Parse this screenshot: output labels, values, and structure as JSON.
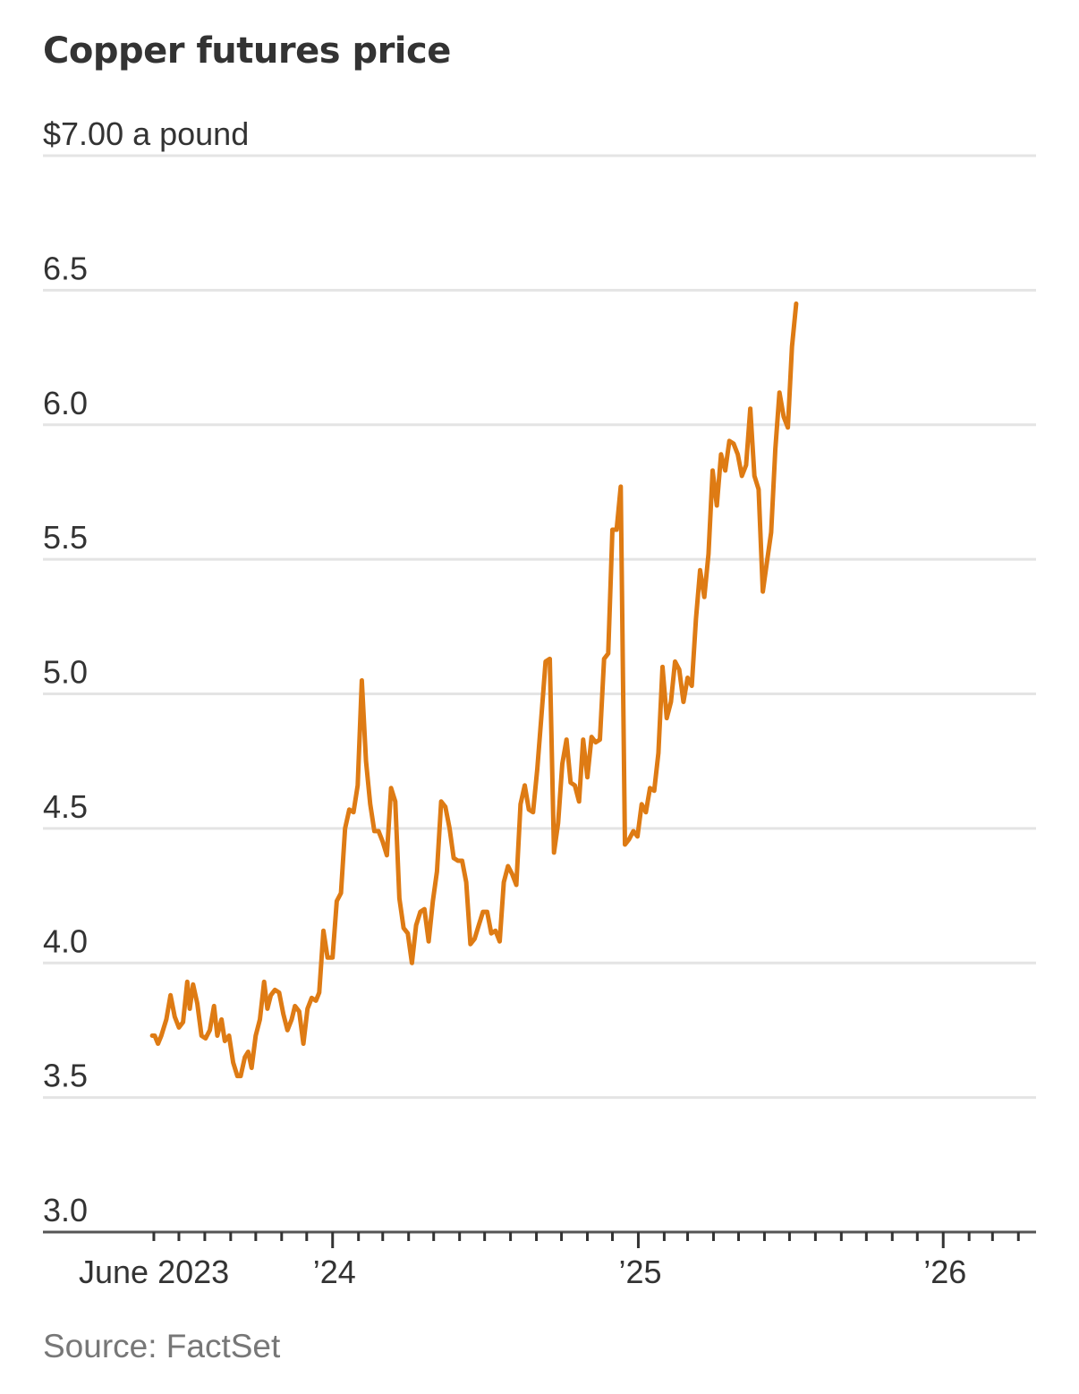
{
  "chart_data": {
    "type": "line",
    "title": "Copper futures price",
    "ylabel": "",
    "xlabel": "",
    "ylim": [
      3.0,
      7.0
    ],
    "yticks": [
      3.0,
      3.5,
      4.0,
      4.5,
      5.0,
      5.5,
      6.0,
      6.5,
      7.0
    ],
    "ytick_labels": [
      "3.0",
      "3.5",
      "4.0",
      "4.5",
      "5.0",
      "5.5",
      "6.0",
      "6.5",
      "$7.00 a pound"
    ],
    "xlim": [
      "2023-05-01",
      "2026-04-20"
    ],
    "xticks": [
      {
        "date": "2023-06-01",
        "label": "June 2023"
      },
      {
        "date": "2024-01-01",
        "label": "’24"
      },
      {
        "date": "2025-01-01",
        "label": "’25"
      },
      {
        "date": "2026-01-01",
        "label": "’26"
      }
    ],
    "grid": true,
    "legend": "none",
    "series": [
      {
        "color": "#de7b14",
        "values": [
          [
            "2023-05-30",
            3.73
          ],
          [
            "2023-06-02",
            3.73
          ],
          [
            "2023-06-06",
            3.7
          ],
          [
            "2023-06-10",
            3.73
          ],
          [
            "2023-06-16",
            3.79
          ],
          [
            "2023-06-21",
            3.88
          ],
          [
            "2023-06-26",
            3.8
          ],
          [
            "2023-07-01",
            3.76
          ],
          [
            "2023-07-06",
            3.78
          ],
          [
            "2023-07-11",
            3.93
          ],
          [
            "2023-07-14",
            3.83
          ],
          [
            "2023-07-18",
            3.92
          ],
          [
            "2023-07-23",
            3.85
          ],
          [
            "2023-07-28",
            3.73
          ],
          [
            "2023-08-02",
            3.72
          ],
          [
            "2023-08-07",
            3.75
          ],
          [
            "2023-08-12",
            3.84
          ],
          [
            "2023-08-16",
            3.73
          ],
          [
            "2023-08-21",
            3.79
          ],
          [
            "2023-08-25",
            3.71
          ],
          [
            "2023-08-30",
            3.73
          ],
          [
            "2023-09-04",
            3.63
          ],
          [
            "2023-09-09",
            3.58
          ],
          [
            "2023-09-13",
            3.58
          ],
          [
            "2023-09-18",
            3.65
          ],
          [
            "2023-09-22",
            3.67
          ],
          [
            "2023-09-26",
            3.61
          ],
          [
            "2023-10-01",
            3.73
          ],
          [
            "2023-10-06",
            3.79
          ],
          [
            "2023-10-11",
            3.93
          ],
          [
            "2023-10-15",
            3.83
          ],
          [
            "2023-10-19",
            3.88
          ],
          [
            "2023-10-24",
            3.9
          ],
          [
            "2023-10-29",
            3.89
          ],
          [
            "2023-11-03",
            3.81
          ],
          [
            "2023-11-08",
            3.75
          ],
          [
            "2023-11-13",
            3.79
          ],
          [
            "2023-11-17",
            3.84
          ],
          [
            "2023-11-22",
            3.82
          ],
          [
            "2023-11-27",
            3.7
          ],
          [
            "2023-12-02",
            3.83
          ],
          [
            "2023-12-07",
            3.87
          ],
          [
            "2023-12-12",
            3.86
          ],
          [
            "2023-12-16",
            3.89
          ],
          [
            "2023-12-21",
            4.12
          ],
          [
            "2023-12-26",
            4.02
          ],
          [
            "2024-01-01",
            4.02
          ],
          [
            "2024-01-06",
            4.23
          ],
          [
            "2024-01-11",
            4.26
          ],
          [
            "2024-01-16",
            4.5
          ],
          [
            "2024-01-21",
            4.57
          ],
          [
            "2024-01-26",
            4.56
          ],
          [
            "2024-01-31",
            4.66
          ],
          [
            "2024-02-05",
            5.05
          ],
          [
            "2024-02-10",
            4.75
          ],
          [
            "2024-02-15",
            4.59
          ],
          [
            "2024-02-20",
            4.49
          ],
          [
            "2024-02-25",
            4.49
          ],
          [
            "2024-03-01",
            4.45
          ],
          [
            "2024-03-06",
            4.4
          ],
          [
            "2024-03-11",
            4.65
          ],
          [
            "2024-03-16",
            4.6
          ],
          [
            "2024-03-21",
            4.24
          ],
          [
            "2024-03-26",
            4.13
          ],
          [
            "2024-03-31",
            4.11
          ],
          [
            "2024-04-05",
            4.0
          ],
          [
            "2024-04-10",
            4.14
          ],
          [
            "2024-04-15",
            4.19
          ],
          [
            "2024-04-20",
            4.2
          ],
          [
            "2024-04-25",
            4.08
          ],
          [
            "2024-04-30",
            4.23
          ],
          [
            "2024-05-05",
            4.34
          ],
          [
            "2024-05-10",
            4.6
          ],
          [
            "2024-05-15",
            4.58
          ],
          [
            "2024-05-20",
            4.5
          ],
          [
            "2024-05-25",
            4.39
          ],
          [
            "2024-05-30",
            4.38
          ],
          [
            "2024-06-04",
            4.38
          ],
          [
            "2024-06-09",
            4.3
          ],
          [
            "2024-06-14",
            4.07
          ],
          [
            "2024-06-19",
            4.09
          ],
          [
            "2024-06-24",
            4.14
          ],
          [
            "2024-06-29",
            4.19
          ],
          [
            "2024-07-04",
            4.19
          ],
          [
            "2024-07-09",
            4.11
          ],
          [
            "2024-07-14",
            4.12
          ],
          [
            "2024-07-19",
            4.08
          ],
          [
            "2024-07-24",
            4.3
          ],
          [
            "2024-07-29",
            4.36
          ],
          [
            "2024-08-03",
            4.33
          ],
          [
            "2024-08-08",
            4.29
          ],
          [
            "2024-08-13",
            4.59
          ],
          [
            "2024-08-18",
            4.66
          ],
          [
            "2024-08-23",
            4.57
          ],
          [
            "2024-08-28",
            4.56
          ],
          [
            "2024-09-02",
            4.72
          ],
          [
            "2024-09-07",
            4.92
          ],
          [
            "2024-09-12",
            5.12
          ],
          [
            "2024-09-17",
            5.13
          ],
          [
            "2024-09-22",
            4.41
          ],
          [
            "2024-09-27",
            4.52
          ],
          [
            "2024-10-02",
            4.74
          ],
          [
            "2024-10-07",
            4.83
          ],
          [
            "2024-10-12",
            4.67
          ],
          [
            "2024-10-17",
            4.66
          ],
          [
            "2024-10-22",
            4.6
          ],
          [
            "2024-10-27",
            4.83
          ],
          [
            "2024-11-01",
            4.69
          ],
          [
            "2024-11-06",
            4.84
          ],
          [
            "2024-11-11",
            4.82
          ],
          [
            "2024-11-16",
            4.83
          ],
          [
            "2024-11-21",
            5.13
          ],
          [
            "2024-11-26",
            5.15
          ],
          [
            "2024-12-01",
            5.61
          ],
          [
            "2024-12-06",
            5.61
          ],
          [
            "2024-12-11",
            5.77
          ],
          [
            "2024-12-16",
            4.44
          ],
          [
            "2024-12-21",
            4.46
          ],
          [
            "2024-12-26",
            4.49
          ],
          [
            "2024-12-31",
            4.47
          ],
          [
            "2025-01-05",
            4.59
          ],
          [
            "2025-01-10",
            4.56
          ],
          [
            "2025-01-15",
            4.65
          ],
          [
            "2025-01-20",
            4.64
          ],
          [
            "2025-01-25",
            4.78
          ],
          [
            "2025-01-30",
            5.1
          ],
          [
            "2025-02-04",
            4.91
          ],
          [
            "2025-02-09",
            4.97
          ],
          [
            "2025-02-14",
            5.12
          ],
          [
            "2025-02-19",
            5.09
          ],
          [
            "2025-02-24",
            4.97
          ],
          [
            "2025-03-01",
            5.06
          ],
          [
            "2025-03-06",
            5.03
          ],
          [
            "2025-03-11",
            5.28
          ],
          [
            "2025-03-16",
            5.46
          ],
          [
            "2025-03-21",
            5.36
          ],
          [
            "2025-03-26",
            5.52
          ],
          [
            "2025-03-31",
            5.83
          ],
          [
            "2025-04-05",
            5.7
          ],
          [
            "2025-04-10",
            5.89
          ],
          [
            "2025-04-15",
            5.83
          ],
          [
            "2025-04-20",
            5.94
          ],
          [
            "2025-04-25",
            5.93
          ],
          [
            "2025-04-30",
            5.89
          ],
          [
            "2025-05-05",
            5.81
          ],
          [
            "2025-05-10",
            5.85
          ],
          [
            "2025-05-15",
            6.06
          ],
          [
            "2025-05-20",
            5.81
          ],
          [
            "2025-05-25",
            5.76
          ],
          [
            "2025-05-30",
            5.38
          ],
          [
            "2025-06-04",
            5.49
          ],
          [
            "2025-06-09",
            5.6
          ],
          [
            "2025-06-14",
            5.91
          ],
          [
            "2025-06-19",
            6.12
          ],
          [
            "2025-06-24",
            6.03
          ],
          [
            "2025-06-29",
            5.99
          ],
          [
            "2025-07-04",
            6.29
          ],
          [
            "2025-07-09",
            6.45
          ]
        ]
      }
    ]
  },
  "source": "Source: FactSet"
}
